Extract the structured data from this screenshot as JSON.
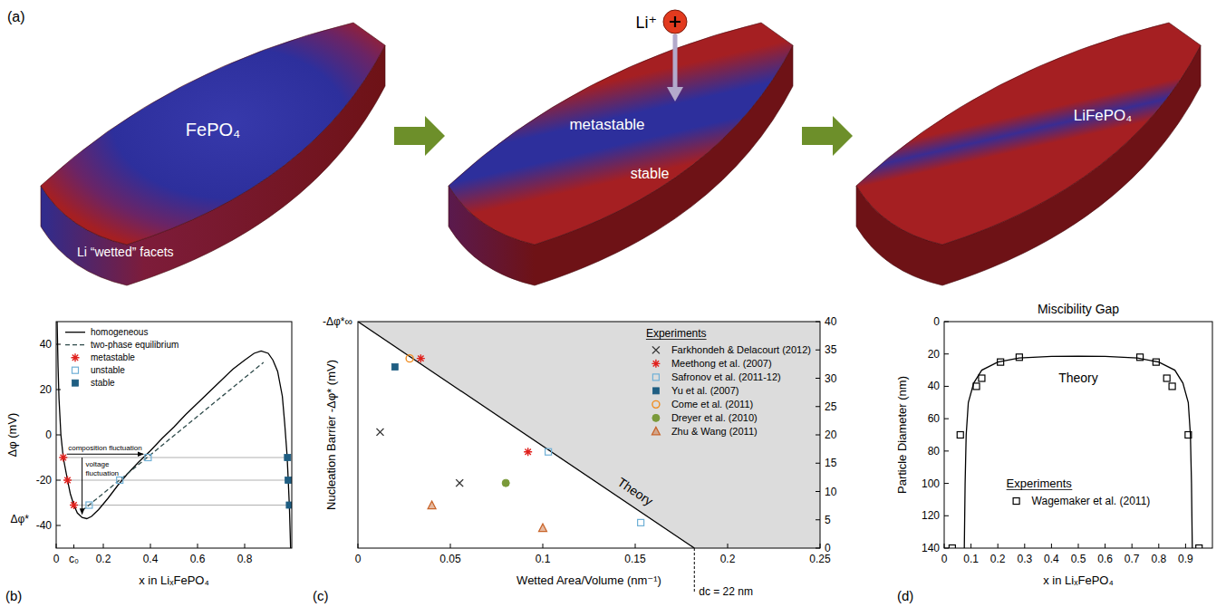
{
  "illustration": {
    "panel": "(a)",
    "frames": [
      {
        "labels": [
          "FePO₄",
          "Li “wetted” facets"
        ]
      },
      {
        "ion": "Li⁺",
        "labels": [
          "metastable",
          "stable"
        ]
      },
      {
        "labels": [
          "LiFePO₄"
        ]
      }
    ]
  },
  "chart_data": [
    {
      "panel": "(b)",
      "type": "line",
      "xlabel": "x in LiₓFePO₄",
      "ylabel": "Δφ (mV)",
      "xlim": [
        0,
        1
      ],
      "ylim": [
        -50,
        50
      ],
      "xticks": [
        0,
        0.2,
        0.4,
        0.6,
        0.8
      ],
      "yticks": [
        -40,
        -20,
        0,
        20,
        40
      ],
      "legend": "upper left",
      "series": [
        {
          "name": "homogeneous",
          "type": "line",
          "color": "#000000",
          "line_style": "solid",
          "x": [
            0.004,
            0.008,
            0.012,
            0.02,
            0.03,
            0.04,
            0.05,
            0.06,
            0.075,
            0.09,
            0.11,
            0.13,
            0.15,
            0.18,
            0.22,
            0.26,
            0.3,
            0.35,
            0.4,
            0.45,
            0.5,
            0.55,
            0.6,
            0.65,
            0.7,
            0.75,
            0.8,
            0.84,
            0.87,
            0.9,
            0.92,
            0.94,
            0.96,
            0.97,
            0.98,
            0.985,
            0.99,
            0.995
          ],
          "values": [
            50,
            30,
            16,
            0,
            -10,
            -15.5,
            -21,
            -26,
            -31,
            -34.5,
            -36.5,
            -37,
            -36,
            -33,
            -28,
            -22.5,
            -17.5,
            -12,
            -7,
            -1.5,
            3.5,
            9,
            14,
            19,
            24,
            29,
            33,
            36,
            37,
            36,
            33,
            28,
            17,
            5,
            -9,
            -20,
            -32,
            -50
          ]
        },
        {
          "name": "two-phase equilibrium",
          "type": "line",
          "color": "#2e4a4a",
          "line_style": "dashed",
          "x": [
            0.11,
            0.88
          ],
          "values": [
            -33.5,
            32
          ]
        },
        {
          "name": "metastable",
          "type": "scatter",
          "marker": "asterisk",
          "color": "#e0201c",
          "x": [
            0.03,
            0.048,
            0.075
          ],
          "values": [
            -10,
            -20,
            -31
          ]
        },
        {
          "name": "unstable",
          "type": "scatter",
          "marker": "square-open",
          "color": "#6fb0d6",
          "x": [
            0.39,
            0.27,
            0.14
          ],
          "values": [
            -10,
            -20,
            -31
          ]
        },
        {
          "name": "stable",
          "type": "scatter",
          "marker": "square",
          "color": "#1f5e82",
          "x": [
            0.982,
            0.985,
            0.99
          ],
          "values": [
            -10,
            -20,
            -31
          ]
        }
      ],
      "levels": [
        -10,
        -20,
        -31
      ],
      "annotations": [
        {
          "text": "composition fluctuation",
          "x": [
            0.045,
            0.37
          ],
          "y": [
            -8.5,
            -8.5
          ]
        },
        {
          "text": "voltage fluctuation",
          "x": [
            0.11,
            0.11
          ],
          "y": [
            -10,
            -35
          ]
        }
      ],
      "y_marks": [
        {
          "text": "Δφ*",
          "y": -37
        }
      ],
      "x_marks": [
        {
          "text": "c₀",
          "x": 0.075
        }
      ]
    },
    {
      "panel": "(c)",
      "type": "scatter",
      "xlabel": "Wetted Area/Volume (nm⁻¹)",
      "ylabel": "Nucleation Barrier -Δφ* (mV)",
      "xlim": [
        0,
        0.25
      ],
      "ylim": [
        0,
        40
      ],
      "xticks": [
        0,
        0.05,
        0.1,
        0.15,
        0.2,
        0.25
      ],
      "yticks": [
        0,
        5,
        10,
        15,
        20,
        25,
        30,
        35,
        40
      ],
      "legend": "upper right",
      "legend_title": "Experiments",
      "series": [
        {
          "type": "area",
          "color": "#dcdcdc",
          "x": [
            0,
            0.182
          ],
          "values": [
            40,
            0
          ]
        },
        {
          "name": "Farkhondeh & Delacourt (2012)",
          "type": "scatter",
          "marker": "x",
          "color": "#333333",
          "x": [
            0.012,
            0.055
          ],
          "values": [
            20.5,
            11.5
          ]
        },
        {
          "name": "Meethong et al. (2007)",
          "type": "scatter",
          "marker": "asterisk",
          "color": "#e0201c",
          "x": [
            0.034,
            0.092
          ],
          "values": [
            33.5,
            17
          ]
        },
        {
          "name": "Safronov et al. (2011-12)",
          "type": "scatter",
          "marker": "square-open",
          "color": "#6fb0d6",
          "x": [
            0.103,
            0.153
          ],
          "values": [
            17,
            4.5
          ]
        },
        {
          "name": "Yu et al. (2007)",
          "type": "scatter",
          "marker": "square",
          "color": "#1f5e82",
          "x": [
            0.02
          ],
          "values": [
            32
          ]
        },
        {
          "name": "Come et al. (2011)",
          "type": "scatter",
          "marker": "circle-open",
          "color": "#f08c1e",
          "x": [
            0.028
          ],
          "values": [
            33.5
          ]
        },
        {
          "name": "Dreyer et al. (2010)",
          "type": "scatter",
          "marker": "circle",
          "color": "#7a9a3a",
          "x": [
            0.08
          ],
          "values": [
            11.5
          ]
        },
        {
          "name": "Zhu & Wang (2011)",
          "type": "scatter",
          "marker": "triangle",
          "color": "#c8642a",
          "x": [
            0.04,
            0.1
          ],
          "values": [
            7.5,
            3.5
          ]
        }
      ],
      "annotations": [
        {
          "text": "Theory",
          "x": 0.15,
          "y": 10
        }
      ],
      "y_marks": [
        {
          "text": "-Δφ*∞",
          "y": 40
        }
      ],
      "x_marks": [
        {
          "text": "dc = 22 nm",
          "x": 0.182
        }
      ]
    },
    {
      "panel": "(d)",
      "type": "line",
      "title": "Miscibility Gap",
      "xlabel": "x in LiₓFePO₄",
      "ylabel": "Particle Diameter (nm)",
      "xlim": [
        0,
        1
      ],
      "ylim": [
        140,
        0
      ],
      "xticks": [
        0,
        0.1,
        0.2,
        0.3,
        0.4,
        0.5,
        0.6,
        0.7,
        0.8,
        0.9
      ],
      "yticks": [
        0,
        20,
        40,
        60,
        80,
        100,
        120,
        140
      ],
      "legend": "lower center",
      "legend_title": "Experiments",
      "series": [
        {
          "type": "line",
          "color": "#000000",
          "line_style": "solid",
          "x": [
            0.075,
            0.078,
            0.082,
            0.09,
            0.11,
            0.14,
            0.2,
            0.28,
            0.4,
            0.5,
            0.6,
            0.72,
            0.8,
            0.86,
            0.89,
            0.91,
            0.918,
            0.922,
            0.925
          ],
          "values": [
            140,
            100,
            70,
            50,
            38,
            30,
            25,
            22.5,
            21.5,
            21.3,
            21.5,
            22.5,
            25,
            30,
            38,
            50,
            70,
            100,
            140
          ]
        },
        {
          "name": "Wagemaker et al. (2011)",
          "type": "scatter",
          "marker": "square-open",
          "color": "#000000",
          "x": [
            0.03,
            0.06,
            0.12,
            0.14,
            0.21,
            0.28,
            0.73,
            0.79,
            0.83,
            0.85,
            0.91,
            0.95
          ],
          "values": [
            140,
            70,
            40,
            35,
            25,
            22,
            22,
            25,
            35,
            40,
            70,
            140
          ]
        }
      ],
      "annotations": [
        {
          "text": "Theory",
          "x": 0.5,
          "y": 35
        }
      ]
    }
  ]
}
